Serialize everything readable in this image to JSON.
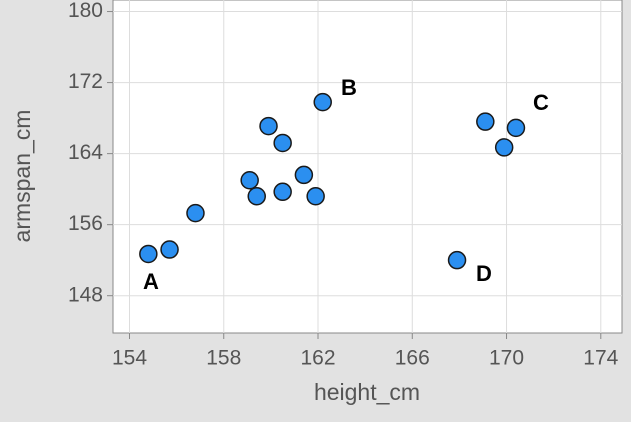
{
  "chart_data": {
    "type": "scatter",
    "x_label": "height_cm",
    "y_label": "armspan_cm",
    "x": [
      154.8,
      155.7,
      156.8,
      159.1,
      159.4,
      159.9,
      160.5,
      160.5,
      161.4,
      161.9,
      162.2,
      167.9,
      169.1,
      169.9,
      170.4
    ],
    "series": [
      {
        "color": "#2b8ff0",
        "values": [
          152.7,
          153.2,
          157.3,
          161.0,
          159.2,
          167.1,
          165.2,
          159.7,
          161.6,
          159.2,
          169.8,
          152.0,
          167.6,
          164.7,
          166.9
        ]
      }
    ],
    "annotations": [
      "A",
      "B",
      "C",
      "D"
    ],
    "xlim": [
      153.3,
      174.9
    ],
    "ylim": [
      143.8,
      181.3
    ],
    "xticks": [
      154,
      158,
      162,
      166,
      170,
      174
    ],
    "yticks": [
      148,
      156,
      164,
      172,
      180
    ],
    "grid": true
  }
}
